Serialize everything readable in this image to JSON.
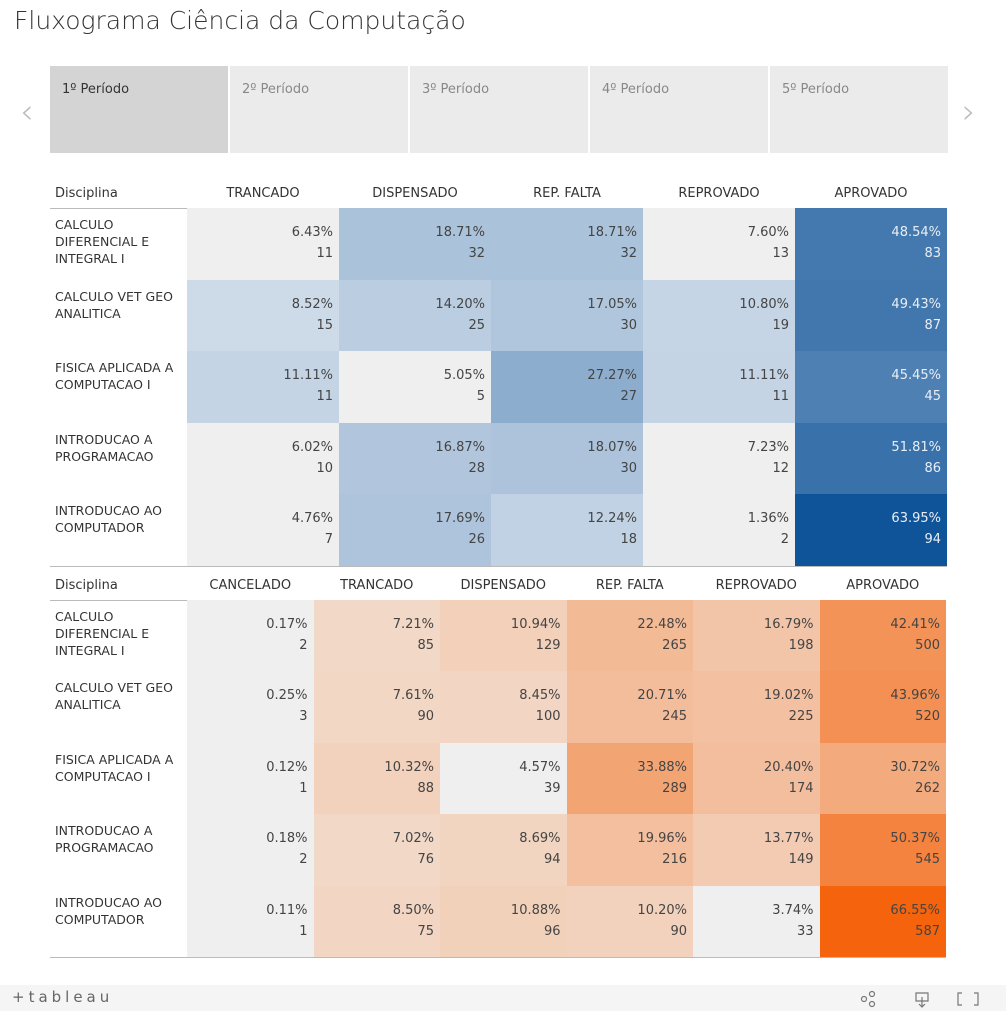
{
  "header": {
    "title": "Fluxograma Ciência da Computação"
  },
  "tabs": {
    "items": [
      "1º Período",
      "2º Período",
      "3º Período",
      "4º Período",
      "5º Período"
    ],
    "selected": 0
  },
  "tables": [
    {
      "columns": [
        "Disciplina",
        "TRANCADO",
        "DISPENSADO",
        "REP. FALTA",
        "REPROVADO",
        "APROVADO"
      ],
      "color_scale": {
        "none": "#efefef",
        "from": "#cfdcea",
        "to": "#0f5398",
        "min": 8,
        "max": 64
      },
      "rows": [
        {
          "name": "CALCULO DIFERENCIAL E INTEGRAL I",
          "cells": [
            {
              "pct": "6.43%",
              "count": "11"
            },
            {
              "pct": "18.71%",
              "count": "32"
            },
            {
              "pct": "18.71%",
              "count": "32"
            },
            {
              "pct": "7.60%",
              "count": "13"
            },
            {
              "pct": "48.54%",
              "count": "83"
            }
          ]
        },
        {
          "name": "CALCULO VET GEO ANALITICA",
          "cells": [
            {
              "pct": "8.52%",
              "count": "15"
            },
            {
              "pct": "14.20%",
              "count": "25"
            },
            {
              "pct": "17.05%",
              "count": "30"
            },
            {
              "pct": "10.80%",
              "count": "19"
            },
            {
              "pct": "49.43%",
              "count": "87"
            }
          ]
        },
        {
          "name": "FISICA APLICADA A COMPUTACAO I",
          "cells": [
            {
              "pct": "11.11%",
              "count": "11"
            },
            {
              "pct": "5.05%",
              "count": "5"
            },
            {
              "pct": "27.27%",
              "count": "27"
            },
            {
              "pct": "11.11%",
              "count": "11"
            },
            {
              "pct": "45.45%",
              "count": "45"
            }
          ]
        },
        {
          "name": "INTRODUCAO A PROGRAMACAO",
          "cells": [
            {
              "pct": "6.02%",
              "count": "10"
            },
            {
              "pct": "16.87%",
              "count": "28"
            },
            {
              "pct": "18.07%",
              "count": "30"
            },
            {
              "pct": "7.23%",
              "count": "12"
            },
            {
              "pct": "51.81%",
              "count": "86"
            }
          ]
        },
        {
          "name": "INTRODUCAO AO COMPUTADOR",
          "cells": [
            {
              "pct": "4.76%",
              "count": "7"
            },
            {
              "pct": "17.69%",
              "count": "26"
            },
            {
              "pct": "12.24%",
              "count": "18"
            },
            {
              "pct": "1.36%",
              "count": "2"
            },
            {
              "pct": "63.95%",
              "count": "94"
            }
          ]
        }
      ]
    },
    {
      "columns": [
        "Disciplina",
        "CANCELADO",
        "TRANCADO",
        "DISPENSADO",
        "REP. FALTA",
        "REPROVADO",
        "APROVADO"
      ],
      "color_scale": {
        "none": "#efefef",
        "from": "#f2dccd",
        "to": "#f5630b",
        "min": 5,
        "max": 67
      },
      "rows": [
        {
          "name": "CALCULO DIFERENCIAL E INTEGRAL I",
          "cells": [
            {
              "pct": "0.17%",
              "count": "2"
            },
            {
              "pct": "7.21%",
              "count": "85"
            },
            {
              "pct": "10.94%",
              "count": "129"
            },
            {
              "pct": "22.48%",
              "count": "265"
            },
            {
              "pct": "16.79%",
              "count": "198"
            },
            {
              "pct": "42.41%",
              "count": "500"
            }
          ]
        },
        {
          "name": "CALCULO VET GEO ANALITICA",
          "cells": [
            {
              "pct": "0.25%",
              "count": "3"
            },
            {
              "pct": "7.61%",
              "count": "90"
            },
            {
              "pct": "8.45%",
              "count": "100"
            },
            {
              "pct": "20.71%",
              "count": "245"
            },
            {
              "pct": "19.02%",
              "count": "225"
            },
            {
              "pct": "43.96%",
              "count": "520"
            }
          ]
        },
        {
          "name": "FISICA APLICADA A COMPUTACAO I",
          "cells": [
            {
              "pct": "0.12%",
              "count": "1"
            },
            {
              "pct": "10.32%",
              "count": "88"
            },
            {
              "pct": "4.57%",
              "count": "39"
            },
            {
              "pct": "33.88%",
              "count": "289"
            },
            {
              "pct": "20.40%",
              "count": "174"
            },
            {
              "pct": "30.72%",
              "count": "262"
            }
          ]
        },
        {
          "name": "INTRODUCAO A PROGRAMACAO",
          "cells": [
            {
              "pct": "0.18%",
              "count": "2"
            },
            {
              "pct": "7.02%",
              "count": "76"
            },
            {
              "pct": "8.69%",
              "count": "94"
            },
            {
              "pct": "19.96%",
              "count": "216"
            },
            {
              "pct": "13.77%",
              "count": "149"
            },
            {
              "pct": "50.37%",
              "count": "545"
            }
          ]
        },
        {
          "name": "INTRODUCAO AO COMPUTADOR",
          "cells": [
            {
              "pct": "0.11%",
              "count": "1"
            },
            {
              "pct": "8.50%",
              "count": "75"
            },
            {
              "pct": "10.88%",
              "count": "96"
            },
            {
              "pct": "10.20%",
              "count": "90"
            },
            {
              "pct": "3.74%",
              "count": "33"
            },
            {
              "pct": "66.55%",
              "count": "587"
            }
          ]
        }
      ]
    }
  ],
  "footer": {
    "logo": "+tableau"
  }
}
